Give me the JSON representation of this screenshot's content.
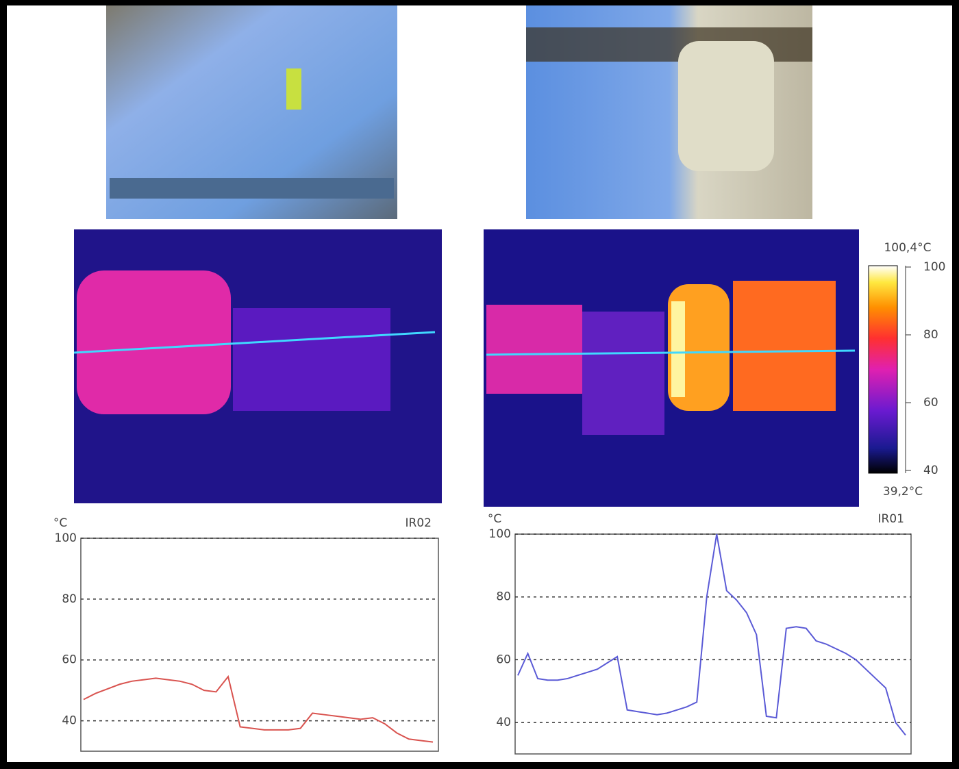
{
  "chart_data": [
    {
      "type": "line",
      "y_label": "°C",
      "corner_label": "IR02",
      "color": "#d9534f",
      "values": [
        47,
        49,
        50.5,
        52,
        53,
        53.5,
        54,
        53.5,
        53,
        52,
        50,
        49.5,
        54.5,
        38,
        37.5,
        37,
        37,
        37,
        37.5,
        42.5,
        42,
        41.5,
        41,
        40.5,
        41,
        39,
        36,
        34,
        33.5,
        33
      ],
      "ylim": [
        30,
        100
      ],
      "yticks": [
        40,
        60,
        80,
        100
      ],
      "grid": true
    },
    {
      "type": "line",
      "y_label": "°C",
      "corner_label": "IR01",
      "color": "#5a5ad6",
      "values": [
        55,
        62,
        54,
        53.5,
        53.5,
        54,
        55,
        56,
        57,
        59,
        61,
        44,
        43.5,
        43,
        42.5,
        43,
        44,
        45,
        46.5,
        80,
        100,
        82,
        79,
        75,
        68,
        42,
        41.5,
        70,
        70.5,
        70,
        66,
        65,
        63.5,
        62,
        60,
        57,
        54,
        51,
        40,
        36
      ],
      "ylim": [
        30,
        100
      ],
      "yticks": [
        40,
        60,
        80,
        100
      ],
      "grid": true
    }
  ],
  "colorbar": {
    "max": {
      "value": 100.4,
      "label": "100,4°C"
    },
    "min": {
      "value": 39.2,
      "label": "39,2°C"
    },
    "ticks": [
      40,
      60,
      80,
      100
    ]
  }
}
